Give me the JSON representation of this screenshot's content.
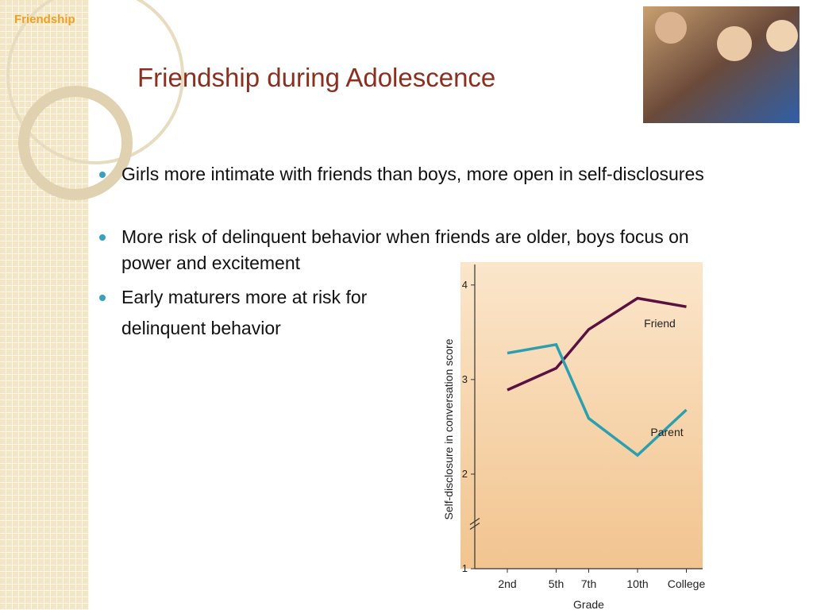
{
  "slide": {
    "tag": "Friendship",
    "title": "Friendship during Adolescence",
    "bullets": [
      "Girls more intimate with friends than boys, more open in self-disclosures",
      "More risk of delinquent behavior when friends are older, boys focus on power and excitement",
      "Early maturers more at risk for"
    ],
    "continuation": "delinquent behavior"
  },
  "chart_data": {
    "type": "line",
    "xlabel": "Grade",
    "ylabel": "Self-disclosure in conversation score",
    "x": [
      2,
      5,
      7,
      10,
      13
    ],
    "xticks": [
      {
        "value": 2,
        "label": "2nd"
      },
      {
        "value": 5,
        "label": "5th"
      },
      {
        "value": 7,
        "label": "7th"
      },
      {
        "value": 10,
        "label": "10th"
      },
      {
        "value": 13,
        "label": "College"
      }
    ],
    "xlim": [
      0,
      14
    ],
    "ylim": [
      1,
      4.2
    ],
    "yticks": [
      1,
      2,
      3,
      4
    ],
    "series": [
      {
        "name": "Friend",
        "color": "#5a1040",
        "values": [
          2.89,
          3.12,
          3.53,
          3.86,
          3.77
        ]
      },
      {
        "name": "Parent",
        "color": "#2a9fb0",
        "values": [
          3.28,
          3.37,
          2.59,
          2.2,
          2.68
        ]
      }
    ]
  }
}
